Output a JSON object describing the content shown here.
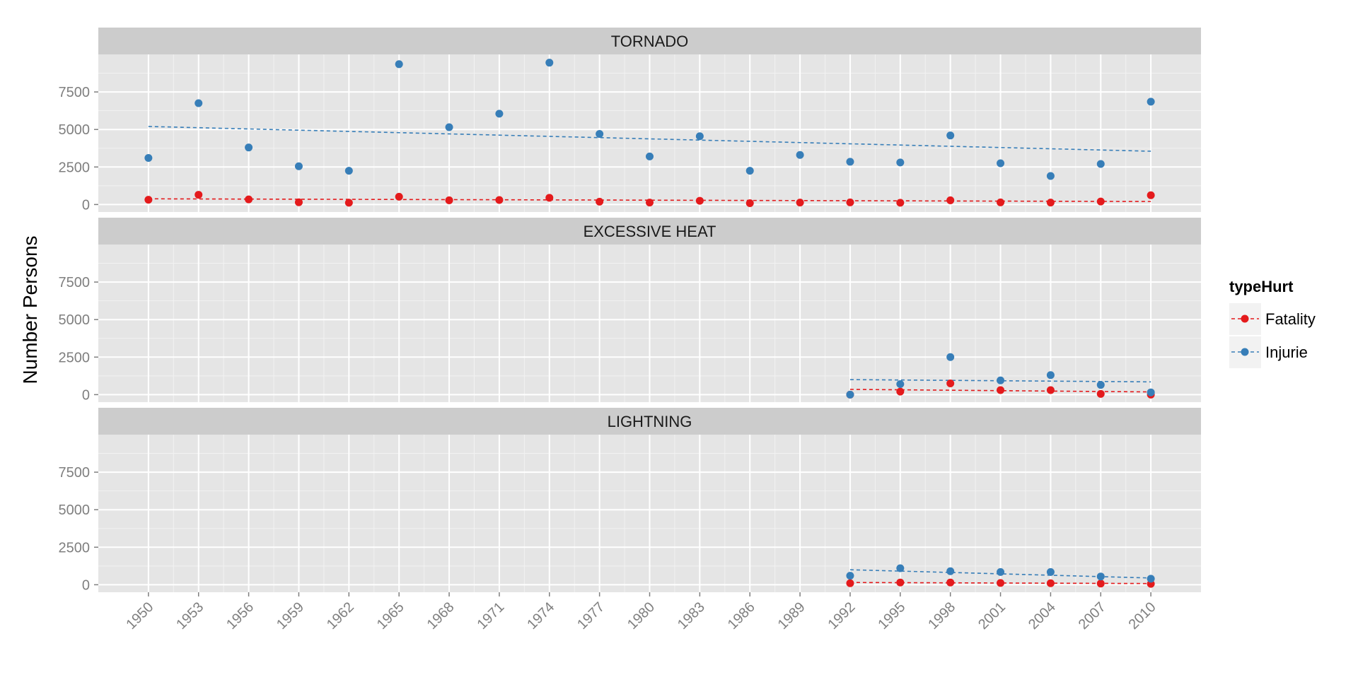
{
  "chart_data": {
    "type": "scatter",
    "ylabel": "Number Persons",
    "xlabel": "",
    "x_ticks": [
      1950,
      1953,
      1956,
      1959,
      1962,
      1965,
      1968,
      1971,
      1974,
      1977,
      1980,
      1983,
      1986,
      1989,
      1992,
      1995,
      1998,
      2001,
      2004,
      2007,
      2010
    ],
    "xlim": [
      1947,
      2013
    ],
    "ylim": [
      -500,
      10000
    ],
    "y_ticks": [
      0,
      2500,
      5000,
      7500
    ],
    "y_tick_labels": [
      "0",
      "2500",
      "5000",
      "7500"
    ],
    "grid": true,
    "legend": {
      "title": "typeHurt",
      "position": "right",
      "entries": [
        {
          "name": "Fatality",
          "color": "#e41a1c"
        },
        {
          "name": "Injurie",
          "color": "#377eb8"
        }
      ]
    },
    "panels": [
      {
        "title": "TORNADO",
        "series": [
          {
            "name": "Fatality",
            "color": "#e41a1c",
            "x": [
              1950,
              1953,
              1956,
              1959,
              1962,
              1965,
              1968,
              1971,
              1974,
              1977,
              1980,
              1983,
              1986,
              1989,
              1992,
              1995,
              1998,
              2001,
              2004,
              2007,
              2010
            ],
            "y": [
              320,
              650,
              340,
              150,
              120,
              520,
              280,
              300,
              450,
              190,
              130,
              250,
              90,
              130,
              140,
              120,
              280,
              140,
              130,
              200,
              620
            ],
            "trend": [
              [
                1950,
                380
              ],
              [
                2010,
                200
              ]
            ]
          },
          {
            "name": "Injurie",
            "color": "#377eb8",
            "x": [
              1950,
              1953,
              1956,
              1959,
              1962,
              1965,
              1968,
              1971,
              1974,
              1977,
              1980,
              1983,
              1986,
              1989,
              1992,
              1995,
              1998,
              2001,
              2004,
              2007,
              2010
            ],
            "y": [
              3100,
              6750,
              3800,
              2550,
              2250,
              9350,
              5150,
              6050,
              9450,
              4700,
              3200,
              4550,
              2250,
              3300,
              2850,
              2800,
              4600,
              2750,
              1900,
              2700,
              6850
            ],
            "trend": [
              [
                1950,
                5200
              ],
              [
                2010,
                3550
              ]
            ]
          }
        ]
      },
      {
        "title": "EXCESSIVE HEAT",
        "series": [
          {
            "name": "Fatality",
            "color": "#e41a1c",
            "x": [
              1992,
              1995,
              1998,
              2001,
              2004,
              2007,
              2010
            ],
            "y": [
              0,
              200,
              750,
              300,
              300,
              50,
              0
            ],
            "trend": [
              [
                1992,
                350
              ],
              [
                2010,
                180
              ]
            ]
          },
          {
            "name": "Injurie",
            "color": "#377eb8",
            "x": [
              1992,
              1995,
              1998,
              2001,
              2004,
              2007,
              2010
            ],
            "y": [
              0,
              700,
              2500,
              950,
              1300,
              650,
              150
            ],
            "trend": [
              [
                1992,
                1000
              ],
              [
                2010,
                850
              ]
            ]
          }
        ]
      },
      {
        "title": "LIGHTNING",
        "series": [
          {
            "name": "Fatality",
            "color": "#e41a1c",
            "x": [
              1992,
              1995,
              1998,
              2001,
              2004,
              2007,
              2010
            ],
            "y": [
              100,
              150,
              150,
              120,
              100,
              80,
              60
            ],
            "trend": [
              [
                1992,
                150
              ],
              [
                2010,
                80
              ]
            ]
          },
          {
            "name": "Injurie",
            "color": "#377eb8",
            "x": [
              1992,
              1995,
              1998,
              2001,
              2004,
              2007,
              2010
            ],
            "y": [
              600,
              1100,
              900,
              850,
              850,
              550,
              400
            ],
            "trend": [
              [
                1992,
                1000
              ],
              [
                2010,
                450
              ]
            ]
          }
        ]
      }
    ]
  }
}
